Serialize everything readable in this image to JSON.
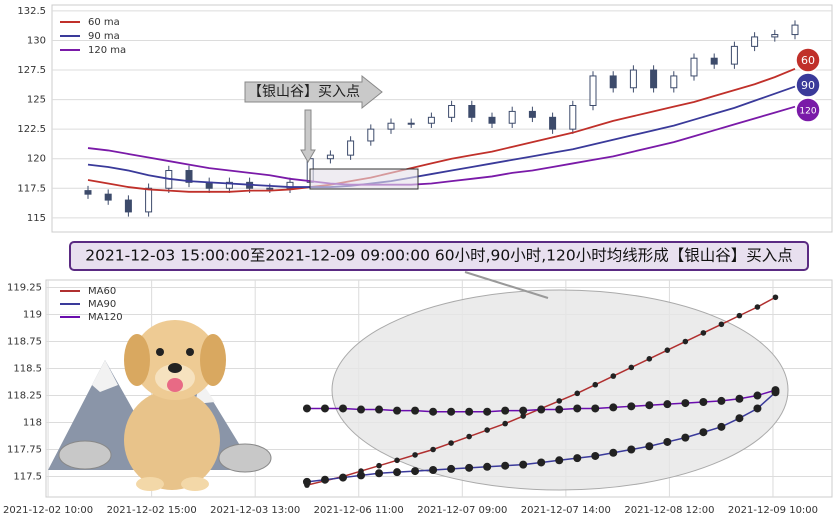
{
  "chart_data": [
    {
      "type": "candlestick",
      "categories": [
        null,
        null,
        null,
        null,
        null,
        null,
        null,
        null,
        null,
        null,
        null,
        null,
        null,
        null,
        null,
        null,
        null,
        null,
        null,
        null,
        null,
        null,
        null,
        null,
        null,
        null,
        null,
        null,
        null,
        null,
        null,
        null,
        null,
        null,
        null,
        null
      ],
      "open": [
        117.3,
        117.0,
        116.5,
        115.5,
        117.5,
        119.0,
        118.0,
        117.5,
        118.0,
        117.5,
        117.5,
        118.0,
        120.0,
        120.3,
        121.5,
        122.5,
        123.0,
        123.0,
        123.5,
        124.5,
        123.5,
        123.0,
        124.0,
        123.5,
        122.5,
        124.5,
        127.0,
        126.0,
        127.5,
        126.0,
        127.0,
        128.5,
        128.0,
        129.5,
        130.3,
        130.5
      ],
      "high": [
        117.7,
        117.4,
        116.9,
        117.9,
        119.4,
        119.4,
        118.4,
        118.4,
        118.4,
        117.9,
        118.4,
        120.4,
        120.7,
        121.9,
        122.9,
        123.4,
        123.4,
        123.9,
        124.9,
        124.9,
        123.9,
        124.4,
        124.4,
        123.9,
        124.9,
        127.4,
        127.4,
        127.9,
        127.9,
        127.4,
        128.9,
        128.9,
        129.9,
        130.7,
        130.9,
        131.7
      ],
      "low": [
        116.6,
        116.1,
        115.1,
        115.1,
        117.1,
        117.6,
        117.1,
        117.1,
        117.1,
        117.1,
        117.1,
        117.6,
        119.6,
        119.9,
        121.1,
        122.1,
        122.6,
        122.6,
        123.1,
        123.1,
        122.6,
        122.6,
        123.1,
        122.1,
        122.1,
        124.1,
        125.6,
        125.6,
        125.6,
        125.6,
        126.6,
        127.6,
        127.6,
        129.1,
        129.9,
        130.1
      ],
      "close": [
        117.0,
        116.5,
        115.5,
        117.5,
        119.0,
        118.0,
        117.5,
        118.0,
        117.5,
        117.5,
        118.0,
        120.0,
        120.3,
        121.5,
        122.5,
        123.0,
        123.0,
        123.5,
        124.5,
        123.5,
        123.0,
        124.0,
        123.5,
        122.5,
        124.5,
        127.0,
        126.0,
        127.5,
        126.0,
        127.0,
        128.5,
        128.0,
        129.5,
        130.3,
        130.5,
        131.3
      ],
      "candle_color": "#3d4b6b",
      "series": [
        {
          "name": "60 ma",
          "color": "#c0302a",
          "values": [
            118.2,
            117.9,
            117.6,
            117.4,
            117.3,
            117.2,
            117.2,
            117.2,
            117.3,
            117.3,
            117.4,
            117.6,
            117.8,
            118.1,
            118.4,
            118.8,
            119.2,
            119.6,
            120.0,
            120.3,
            120.6,
            121.0,
            121.4,
            121.8,
            122.2,
            122.7,
            123.2,
            123.6,
            124.0,
            124.4,
            124.8,
            125.3,
            125.8,
            126.3,
            126.9,
            127.6
          ]
        },
        {
          "name": "90 ma",
          "color": "#3a3a9a",
          "values": [
            119.5,
            119.3,
            119.0,
            118.6,
            118.3,
            118.1,
            118.0,
            117.9,
            117.8,
            117.7,
            117.6,
            117.6,
            117.6,
            117.7,
            117.9,
            118.1,
            118.4,
            118.7,
            119.0,
            119.3,
            119.6,
            119.9,
            120.2,
            120.5,
            120.8,
            121.2,
            121.6,
            122.0,
            122.4,
            122.8,
            123.3,
            123.8,
            124.3,
            124.9,
            125.5,
            126.1
          ]
        },
        {
          "name": "120 ma",
          "color": "#7a1aa8",
          "values": [
            120.9,
            120.7,
            120.4,
            120.1,
            119.8,
            119.5,
            119.2,
            119.0,
            118.8,
            118.6,
            118.3,
            118.1,
            117.9,
            117.8,
            117.8,
            117.8,
            117.8,
            117.9,
            118.1,
            118.3,
            118.5,
            118.8,
            119.0,
            119.3,
            119.6,
            119.9,
            120.2,
            120.6,
            121.0,
            121.4,
            121.9,
            122.4,
            122.9,
            123.4,
            123.9,
            124.4
          ]
        }
      ],
      "ylim": [
        113.8,
        133.0
      ],
      "yticks": [
        115.0,
        117.5,
        120.0,
        122.5,
        125.0,
        127.5,
        130.0,
        132.5
      ],
      "grid": true,
      "legend": "upper left",
      "annotation": "【银山谷】买入点",
      "badges": [
        "60",
        "90",
        "120"
      ],
      "banner": "2021-12-03 15:00:00至2021-12-09 09:00:00 60小时,90小时,120小时均线形成【银山谷】买入点"
    },
    {
      "type": "line",
      "x": [
        2.5,
        2.674,
        2.848,
        3.022,
        3.196,
        3.37,
        3.544,
        3.718,
        3.892,
        4.066,
        4.24,
        4.414,
        4.588,
        4.762,
        4.936,
        5.11,
        5.284,
        5.458,
        5.632,
        5.806,
        5.98,
        6.154,
        6.328,
        6.502,
        6.676,
        6.85,
        7.024
      ],
      "series": [
        {
          "name": "MA60",
          "color": "#b03030",
          "values": [
            117.42,
            117.46,
            117.5,
            117.55,
            117.6,
            117.65,
            117.7,
            117.75,
            117.81,
            117.87,
            117.93,
            117.99,
            118.06,
            118.13,
            118.2,
            118.27,
            118.35,
            118.43,
            118.51,
            118.59,
            118.67,
            118.75,
            118.83,
            118.91,
            118.99,
            119.07,
            119.16
          ]
        },
        {
          "name": "MA90",
          "color": "#3a3a9a",
          "values": [
            117.45,
            117.47,
            117.49,
            117.51,
            117.53,
            117.54,
            117.55,
            117.56,
            117.57,
            117.58,
            117.59,
            117.6,
            117.61,
            117.63,
            117.65,
            117.67,
            117.69,
            117.72,
            117.75,
            117.78,
            117.82,
            117.86,
            117.91,
            117.96,
            118.04,
            118.13,
            118.28
          ]
        },
        {
          "name": "MA120",
          "color": "#6a0dad",
          "values": [
            118.13,
            118.13,
            118.13,
            118.12,
            118.12,
            118.11,
            118.11,
            118.1,
            118.1,
            118.1,
            118.1,
            118.11,
            118.11,
            118.12,
            118.12,
            118.13,
            118.13,
            118.14,
            118.15,
            118.16,
            118.17,
            118.18,
            118.19,
            118.2,
            118.22,
            118.25,
            118.3
          ]
        }
      ],
      "xlim": [
        -0.02,
        7.57
      ],
      "xticks": [
        {
          "value": 0,
          "label": "2021-12-02 10:00"
        },
        {
          "value": 1,
          "label": "2021-12-02 15:00"
        },
        {
          "value": 2,
          "label": "2021-12-03 13:00"
        },
        {
          "value": 3,
          "label": "2021-12-06 11:00"
        },
        {
          "value": 4,
          "label": "2021-12-07 09:00"
        },
        {
          "value": 5,
          "label": "2021-12-07 14:00"
        },
        {
          "value": 6,
          "label": "2021-12-08 12:00"
        },
        {
          "value": 7,
          "label": "2021-12-09 10:00"
        }
      ],
      "ylim": [
        117.31,
        119.32
      ],
      "yticks": [
        117.5,
        117.75,
        118.0,
        118.25,
        118.5,
        118.75,
        119.0,
        119.25
      ],
      "grid": true,
      "legend": "upper left"
    }
  ]
}
